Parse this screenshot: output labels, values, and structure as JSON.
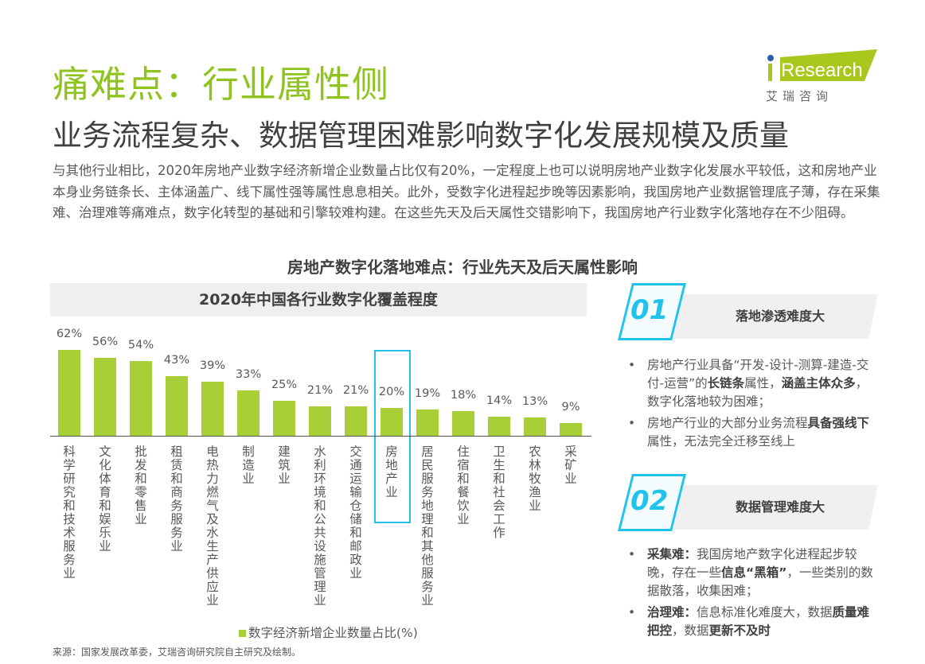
{
  "header": {
    "title": "痛难点：行业属性侧",
    "subtitle": "业务流程复杂、数据管理困难影响数字化发展规模及质量"
  },
  "logo": {
    "brand": "iResearch",
    "cn": "艾 瑞 咨 询",
    "color": "#a8c81e"
  },
  "intro": "与其他行业相比，2020年房地产业数字经济新增企业数量占比仅有20%，一定程度上也可以说明房地产业数字化发展水平较低，这和房地产业本身业务链条长、主体涵盖广、线下属性强等属性息息相关。此外，受数字化进程起步晚等因素影响，我国房地产业数据管理底子薄，存在采集难、治理难等痛难点，数字化转型的基础和引擎较难构建。在这些先天及后天属性交错影响下，我国房地产行业数字化落地存在不少阻碍。",
  "section_title": "房地产数字化落地难点：行业先天及后天属性影响",
  "chart_data": {
    "type": "bar",
    "title": "2020年中国各行业数字化覆盖程度",
    "categories": [
      "科学研究和技术服务业",
      "文化体育和娱乐业",
      "批发和零售业",
      "租赁和商务服务业",
      "电热力 燃气及水生产供应业",
      "制造业",
      "建筑业",
      "水利 环境和公共设施管理业",
      "交通运输 仓储和邮政业",
      "房地产业",
      "居民服务 地理和其他服务业",
      "住宿和餐饮业",
      "卫生和社会工作",
      "农林牧渔业",
      "采矿业"
    ],
    "values": [
      62,
      56,
      54,
      43,
      39,
      33,
      25,
      21,
      21,
      20,
      19,
      18,
      14,
      13,
      9
    ],
    "value_labels": [
      "62%",
      "56%",
      "54%",
      "43%",
      "39%",
      "33%",
      "25%",
      "21%",
      "21%",
      "20%",
      "19%",
      "18%",
      "14%",
      "13%",
      "9%"
    ],
    "legend": "数字经济新增企业数量占比(%)",
    "highlight": "房地产业",
    "bar_color": "#a9cf38",
    "highlight_color": "#22c3ea",
    "ylim": [
      0,
      62
    ]
  },
  "source": "来源：国家发展改革委，艾瑞咨询研究院自主研究及绘制。",
  "cards": [
    {
      "num": "01",
      "title": "落地渗透难度大",
      "bullets": [
        [
          {
            "t": "房地产行业具备“开发-设计-测算-建造-交付-运营”的"
          },
          {
            "t": "长链条",
            "b": true
          },
          {
            "t": "属性，"
          },
          {
            "t": "涵盖主体众多",
            "b": true
          },
          {
            "t": "，数字化落地较为困难；"
          }
        ],
        [
          {
            "t": "房地产行业的大部分业务流程"
          },
          {
            "t": "具备强线下",
            "b": true
          },
          {
            "t": "属性，无法完全迁移至线上"
          }
        ]
      ]
    },
    {
      "num": "02",
      "title": "数据管理难度大",
      "bullets": [
        [
          {
            "t": "采集难：",
            "b": true
          },
          {
            "t": "我国房地产数字化进程起步较晚，存在一些"
          },
          {
            "t": "信息“黑箱”",
            "b": true
          },
          {
            "t": "，一些类别的数据散落，收集困难；"
          }
        ],
        [
          {
            "t": "治理难：",
            "b": true
          },
          {
            "t": "信息标准化难度大，数据"
          },
          {
            "t": "质量难把控",
            "b": true
          },
          {
            "t": "，数据"
          },
          {
            "t": "更新不及时",
            "b": true
          }
        ]
      ]
    }
  ]
}
